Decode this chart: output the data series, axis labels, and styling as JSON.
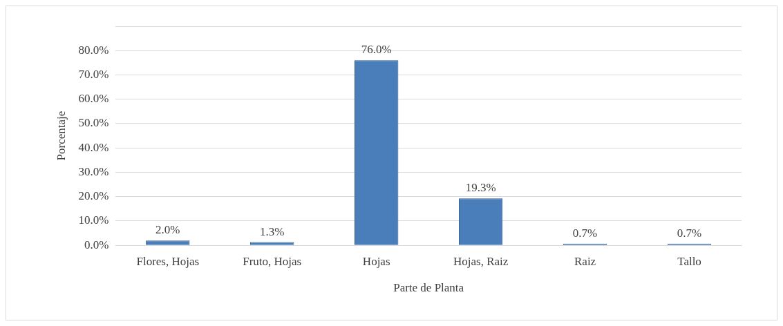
{
  "chart_data": {
    "type": "bar",
    "xlabel": "Parte de Planta",
    "ylabel": "Porcentaje",
    "categories": [
      "Flores, Hojas",
      "Fruto, Hojas",
      "Hojas",
      "Hojas, Raiz",
      "Raiz",
      "Tallo"
    ],
    "values": [
      2.0,
      1.3,
      76.0,
      19.3,
      0.7,
      0.7
    ],
    "value_labels": [
      "2.0%",
      "1.3%",
      "76.0%",
      "19.3%",
      "0.7%",
      "0.7%"
    ],
    "color": "#4a7ebb",
    "ylim": [
      0,
      90
    ],
    "yticks": [
      {
        "value": 0,
        "label": "0.0%"
      },
      {
        "value": 10,
        "label": "10.0%"
      },
      {
        "value": 20,
        "label": "20.0%"
      },
      {
        "value": 30,
        "label": "30.0%"
      },
      {
        "value": 40,
        "label": "40.0%"
      },
      {
        "value": 50,
        "label": "50.0%"
      },
      {
        "value": 60,
        "label": "60.0%"
      },
      {
        "value": 70,
        "label": "70.0%"
      },
      {
        "value": 80,
        "label": "80.0%"
      },
      {
        "value": 90,
        "label": null
      }
    ],
    "grid": "y",
    "legend": false
  }
}
